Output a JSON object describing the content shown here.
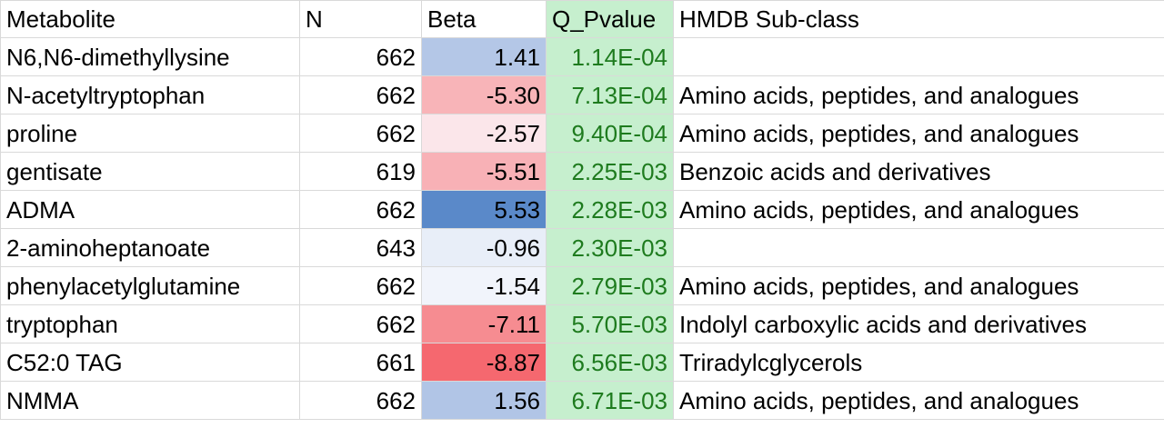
{
  "headers": {
    "metabolite": "Metabolite",
    "n": "N",
    "beta": "Beta",
    "q_pvalue": "Q_Pvalue",
    "hmdb": "HMDB Sub-class"
  },
  "rows": [
    {
      "metabolite": "N6,N6-dimethyllysine",
      "n": "662",
      "beta": "1.41",
      "q": "1.14E-04",
      "hmdb": "",
      "beta_color": "#b4c7e7"
    },
    {
      "metabolite": "N-acetyltryptophan",
      "n": "662",
      "beta": "-5.30",
      "q": "7.13E-04",
      "hmdb": "Amino acids, peptides, and analogues",
      "beta_color": "#f8b4b8"
    },
    {
      "metabolite": "proline",
      "n": "662",
      "beta": "-2.57",
      "q": "9.40E-04",
      "hmdb": "Amino acids, peptides, and analogues",
      "beta_color": "#fbe6ea"
    },
    {
      "metabolite": "gentisate",
      "n": "619",
      "beta": "-5.51",
      "q": "2.25E-03",
      "hmdb": "Benzoic acids and derivatives",
      "beta_color": "#f8b1b6"
    },
    {
      "metabolite": "ADMA",
      "n": "662",
      "beta": "5.53",
      "q": "2.28E-03",
      "hmdb": "Amino acids, peptides, and analogues",
      "beta_color": "#5a89c9"
    },
    {
      "metabolite": "2-aminoheptanoate",
      "n": "643",
      "beta": "-0.96",
      "q": "2.30E-03",
      "hmdb": "",
      "beta_color": "#e8eef8"
    },
    {
      "metabolite": "phenylacetylglutamine",
      "n": "662",
      "beta": "-1.54",
      "q": "2.79E-03",
      "hmdb": "Amino acids, peptides, and analogues",
      "beta_color": "#f1f4fb"
    },
    {
      "metabolite": "tryptophan",
      "n": "662",
      "beta": "-7.11",
      "q": "5.70E-03",
      "hmdb": "Indolyl carboxylic acids and derivatives",
      "beta_color": "#f68c91"
    },
    {
      "metabolite": "C52:0 TAG",
      "n": "661",
      "beta": "-8.87",
      "q": "6.56E-03",
      "hmdb": "Triradylcglycerols",
      "beta_color": "#f5686f"
    },
    {
      "metabolite": "NMMA",
      "n": "662",
      "beta": "1.56",
      "q": "6.71E-03",
      "hmdb": "Amino acids, peptides, and analogues",
      "beta_color": "#b1c5e6"
    }
  ]
}
